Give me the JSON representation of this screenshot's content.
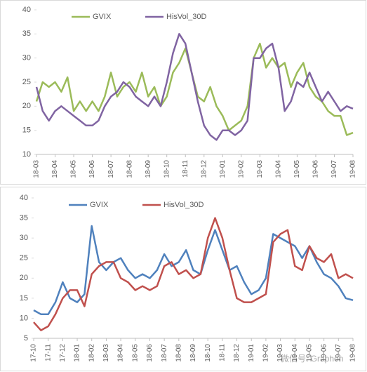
{
  "chart_data": [
    {
      "type": "line",
      "ylim": [
        10,
        40
      ],
      "yticks": [
        10,
        15,
        20,
        25,
        30,
        35,
        40
      ],
      "legend": "top",
      "categories": [
        "18-03",
        null,
        null,
        "18-04",
        null,
        null,
        "18-05",
        null,
        null,
        "18-06",
        null,
        null,
        "18-07",
        null,
        null,
        "18-08",
        null,
        null,
        "18-09",
        null,
        null,
        "18-10",
        null,
        null,
        "18-11",
        null,
        null,
        "18-12",
        null,
        null,
        "19-01",
        null,
        null,
        "19-02",
        null,
        null,
        "19-03",
        null,
        null,
        "19-04",
        null,
        null,
        "19-05",
        null,
        null,
        "19-06",
        null,
        null,
        "19-07",
        null,
        null,
        "19-08"
      ],
      "series": [
        {
          "name": "GVIX",
          "color": "#9bbb59",
          "values": [
            21,
            25,
            24,
            25,
            23,
            26,
            19,
            21,
            19,
            21,
            19,
            22,
            27,
            22,
            24,
            25,
            23,
            27,
            22,
            24,
            20,
            22,
            27,
            29,
            32,
            27,
            22,
            21,
            24,
            20,
            18,
            15,
            16,
            17,
            20,
            30,
            33,
            28,
            30,
            28,
            29,
            24,
            27,
            29,
            24,
            22,
            21,
            19,
            18,
            18,
            14,
            14.5
          ]
        },
        {
          "name": "HisVol_30D",
          "color": "#8064a2",
          "values": [
            24,
            19,
            17,
            19,
            20,
            19,
            18,
            17,
            16,
            16,
            17,
            20,
            22,
            23,
            25,
            24,
            22,
            21,
            20,
            22,
            20,
            25,
            31,
            35,
            33,
            27,
            21,
            16,
            14,
            13,
            15,
            15,
            14,
            15,
            17,
            30,
            30,
            32,
            33,
            28,
            19,
            21,
            25,
            24,
            27,
            24,
            21,
            23,
            21,
            19,
            20,
            19.5
          ]
        }
      ]
    },
    {
      "type": "line",
      "ylim": [
        5,
        40
      ],
      "yticks": [
        5,
        10,
        15,
        20,
        25,
        30,
        35,
        40
      ],
      "legend": "top",
      "categories": [
        "17-10",
        null,
        "17-11",
        null,
        "17-12",
        null,
        "18-01",
        null,
        "18-02",
        null,
        "18-03",
        null,
        "18-04",
        null,
        "18-05",
        null,
        "18-06",
        null,
        "18-07",
        null,
        "18-08",
        null,
        "18-09",
        null,
        "18-10",
        null,
        "18-11",
        null,
        "18-12",
        null,
        "19-01",
        null,
        "19-02",
        null,
        "19-03",
        null,
        "19-04",
        null,
        "19-05",
        null,
        "19-06",
        null,
        "19-07",
        null,
        "19-08"
      ],
      "series": [
        {
          "name": "GVIX",
          "color": "#4f81bd",
          "values": [
            12,
            11,
            11,
            14,
            19,
            15,
            14,
            16,
            33,
            24,
            22,
            24,
            25,
            22,
            20,
            21,
            20,
            22,
            26,
            23,
            24,
            27,
            22,
            21,
            27,
            32,
            27,
            22,
            23,
            19,
            16,
            17,
            20,
            31,
            30,
            29,
            28,
            25,
            28,
            24,
            21,
            20,
            18,
            15,
            14.5
          ]
        },
        {
          "name": "HisVol_30D",
          "color": "#c0504d",
          "values": [
            9,
            7,
            8,
            11,
            15,
            17,
            17,
            13,
            21,
            23,
            24,
            24,
            20,
            19,
            17,
            18,
            17,
            18,
            23,
            24,
            21,
            22,
            20,
            21,
            30,
            35,
            30,
            22,
            15,
            14,
            14,
            15,
            16,
            29,
            31,
            32,
            23,
            22,
            28,
            25,
            24,
            26,
            20,
            21,
            20
          ]
        }
      ]
    }
  ],
  "watermark": "微信号: Graphon"
}
